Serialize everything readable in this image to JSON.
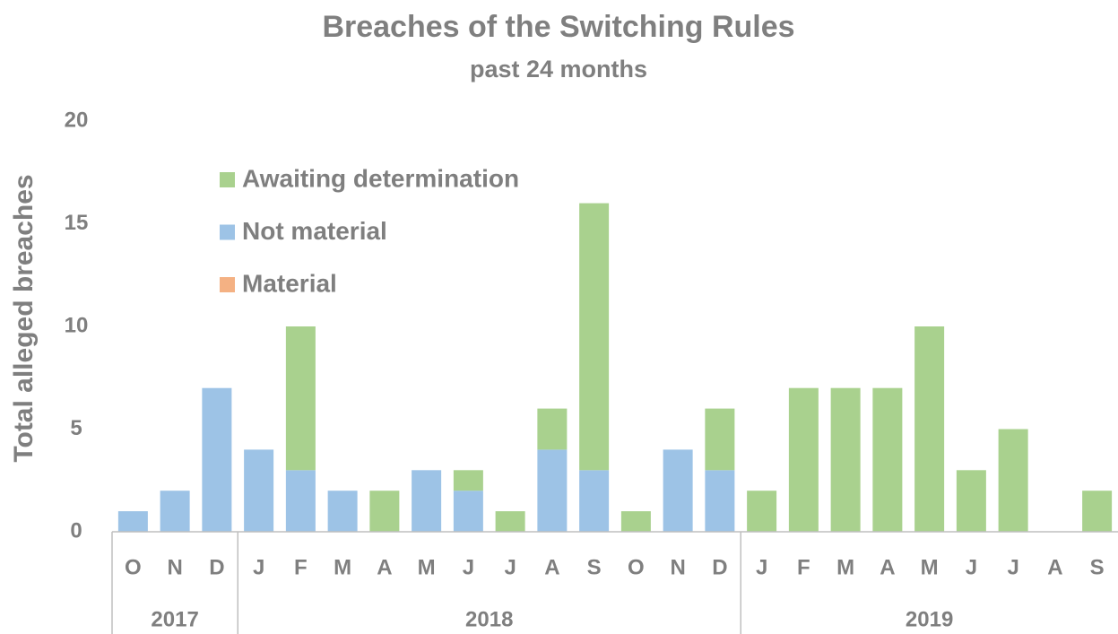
{
  "chart_data": {
    "type": "stacked_bar",
    "title": "Breaches of the Switching Rules",
    "subtitle": "past 24 months",
    "y_label": "Total alleged breaches",
    "categories": [
      "O",
      "N",
      "D",
      "J",
      "F",
      "M",
      "A",
      "M",
      "J",
      "J",
      "A",
      "S",
      "O",
      "N",
      "D",
      "J",
      "F",
      "M",
      "A",
      "M",
      "J",
      "J",
      "A",
      "S"
    ],
    "groups": [
      {
        "label": "2017",
        "count": 3
      },
      {
        "label": "2018",
        "count": 12
      },
      {
        "label": "2019",
        "count": 9
      }
    ],
    "series": [
      {
        "name": "Material",
        "color": "#f4b183",
        "values": [
          0,
          0,
          0,
          0,
          0,
          0,
          0,
          0,
          0,
          0,
          0,
          0,
          0,
          0,
          0,
          0,
          0,
          0,
          0,
          0,
          0,
          0,
          0,
          0
        ]
      },
      {
        "name": "Not material",
        "color": "#9dc3e6",
        "values": [
          1,
          2,
          7,
          4,
          3,
          2,
          0,
          3,
          2,
          0,
          4,
          3,
          0,
          4,
          3,
          0,
          0,
          0,
          0,
          0,
          0,
          0,
          0,
          0
        ]
      },
      {
        "name": "Awaiting determination",
        "color": "#a9d18e",
        "values": [
          0,
          0,
          0,
          0,
          7,
          0,
          2,
          0,
          1,
          1,
          2,
          13,
          1,
          0,
          3,
          2,
          7,
          7,
          7,
          10,
          3,
          5,
          0,
          2
        ]
      }
    ],
    "ylim": [
      0,
      20
    ],
    "yticks": [
      0,
      5,
      10,
      15,
      20
    ],
    "grid": false,
    "legend": "upper left"
  }
}
